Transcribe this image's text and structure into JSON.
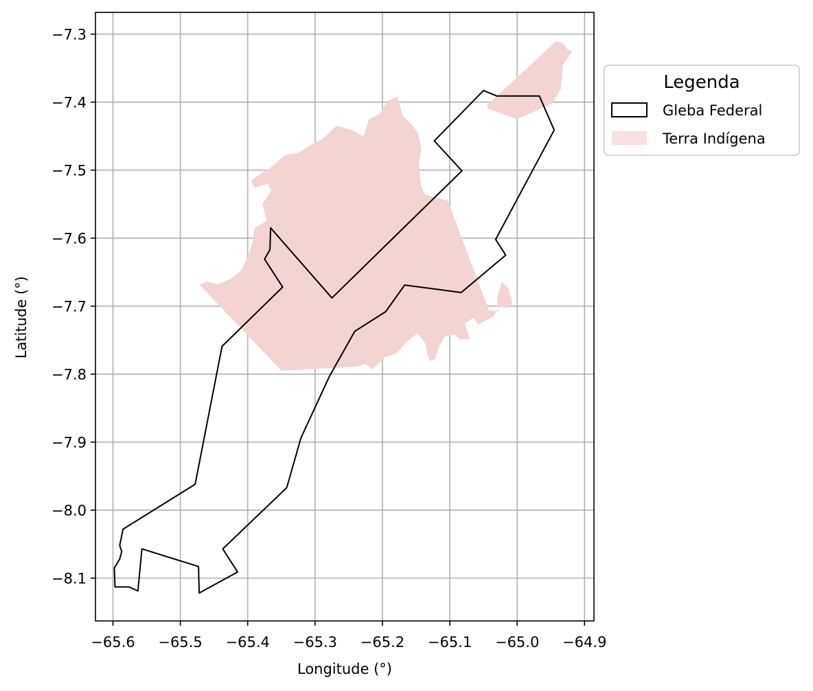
{
  "chart_data": {
    "type": "map",
    "xlabel": "Longitude (°)",
    "ylabel": "Latitude (°)",
    "xlim": [
      -65.626,
      -64.886
    ],
    "ylim": [
      -8.163,
      -7.268
    ],
    "x_ticks": [
      -65.6,
      -65.5,
      -65.4,
      -65.3,
      -65.2,
      -65.1,
      -65.0,
      -64.9
    ],
    "y_ticks": [
      -7.3,
      -7.4,
      -7.5,
      -7.6,
      -7.7,
      -7.8,
      -7.9,
      -8.0,
      -8.1
    ],
    "x_tick_labels": [
      "−65.6",
      "−65.5",
      "−65.4",
      "−65.3",
      "−65.2",
      "−65.1",
      "−65.0",
      "−64.9"
    ],
    "y_tick_labels": [
      "−7.3",
      "−7.4",
      "−7.5",
      "−7.6",
      "−7.7",
      "−7.8",
      "−7.9",
      "−8.0",
      "−8.1"
    ],
    "grid": true,
    "legend": {
      "title": "Legenda",
      "position": "outside-right-top",
      "entries": [
        {
          "label": "Gleba Federal",
          "style": "outline",
          "stroke": "#000000",
          "fill": "none"
        },
        {
          "label": "Terra Indígena",
          "style": "fill",
          "fill": "#f2d4d3"
        }
      ]
    },
    "series": [
      {
        "name": "Gleba Federal",
        "kind": "polygon",
        "stroke": "#000000",
        "fill": "none",
        "coordinates": [
          [
            -65.366,
            -7.585
          ],
          [
            -65.275,
            -7.688
          ],
          [
            -65.082,
            -7.501
          ],
          [
            -65.123,
            -7.457
          ],
          [
            -65.05,
            -7.383
          ],
          [
            -65.03,
            -7.391
          ],
          [
            -64.967,
            -7.391
          ],
          [
            -64.945,
            -7.441
          ],
          [
            -65.032,
            -7.602
          ],
          [
            -65.017,
            -7.625
          ],
          [
            -65.083,
            -7.68
          ],
          [
            -65.167,
            -7.669
          ],
          [
            -65.195,
            -7.708
          ],
          [
            -65.241,
            -7.737
          ],
          [
            -65.278,
            -7.802
          ],
          [
            -65.321,
            -7.894
          ],
          [
            -65.342,
            -7.967
          ],
          [
            -65.437,
            -8.057
          ],
          [
            -65.415,
            -8.091
          ],
          [
            -65.472,
            -8.122
          ],
          [
            -65.473,
            -8.083
          ],
          [
            -65.557,
            -8.057
          ],
          [
            -65.563,
            -8.119
          ],
          [
            -65.576,
            -8.113
          ],
          [
            -65.597,
            -8.113
          ],
          [
            -65.598,
            -8.085
          ],
          [
            -65.59,
            -8.072
          ],
          [
            -65.587,
            -8.061
          ],
          [
            -65.59,
            -8.052
          ],
          [
            -65.585,
            -8.028
          ],
          [
            -65.478,
            -7.962
          ],
          [
            -65.438,
            -7.759
          ],
          [
            -65.348,
            -7.672
          ],
          [
            -65.375,
            -7.631
          ],
          [
            -65.367,
            -7.617
          ]
        ]
      },
      {
        "name": "Terra Indígena",
        "kind": "polygon",
        "stroke": "none",
        "fill": "#f2d4d3",
        "coordinates": [
          [
            -65.472,
            -7.668
          ],
          [
            -65.35,
            -7.795
          ],
          [
            -65.238,
            -7.789
          ],
          [
            -65.225,
            -7.785
          ],
          [
            -65.216,
            -7.793
          ],
          [
            -65.205,
            -7.784
          ],
          [
            -65.196,
            -7.775
          ],
          [
            -65.18,
            -7.77
          ],
          [
            -65.163,
            -7.752
          ],
          [
            -65.148,
            -7.74
          ],
          [
            -65.137,
            -7.753
          ],
          [
            -65.133,
            -7.77
          ],
          [
            -65.13,
            -7.781
          ],
          [
            -65.122,
            -7.778
          ],
          [
            -65.116,
            -7.76
          ],
          [
            -65.108,
            -7.745
          ],
          [
            -65.093,
            -7.742
          ],
          [
            -65.085,
            -7.749
          ],
          [
            -65.07,
            -7.748
          ],
          [
            -65.078,
            -7.726
          ],
          [
            -65.065,
            -7.717
          ],
          [
            -65.058,
            -7.727
          ],
          [
            -65.035,
            -7.715
          ],
          [
            -65.027,
            -7.7
          ],
          [
            -65.014,
            -7.703
          ],
          [
            -65.007,
            -7.695
          ],
          [
            -65.013,
            -7.673
          ],
          [
            -65.023,
            -7.665
          ],
          [
            -65.03,
            -7.69
          ],
          [
            -65.028,
            -7.708
          ],
          [
            -65.042,
            -7.706
          ],
          [
            -65.103,
            -7.545
          ],
          [
            -65.137,
            -7.536
          ],
          [
            -65.143,
            -7.522
          ],
          [
            -65.146,
            -7.49
          ],
          [
            -65.142,
            -7.468
          ],
          [
            -65.147,
            -7.445
          ],
          [
            -65.157,
            -7.433
          ],
          [
            -65.17,
            -7.42
          ],
          [
            -65.178,
            -7.392
          ],
          [
            -65.192,
            -7.398
          ],
          [
            -65.205,
            -7.418
          ],
          [
            -65.22,
            -7.425
          ],
          [
            -65.228,
            -7.45
          ],
          [
            -65.248,
            -7.44
          ],
          [
            -65.268,
            -7.435
          ],
          [
            -65.29,
            -7.455
          ],
          [
            -65.305,
            -7.462
          ],
          [
            -65.325,
            -7.475
          ],
          [
            -65.345,
            -7.478
          ],
          [
            -65.358,
            -7.49
          ],
          [
            -65.372,
            -7.5
          ],
          [
            -65.395,
            -7.515
          ],
          [
            -65.39,
            -7.526
          ],
          [
            -65.37,
            -7.52
          ],
          [
            -65.365,
            -7.53
          ],
          [
            -65.378,
            -7.55
          ],
          [
            -65.372,
            -7.575
          ],
          [
            -65.39,
            -7.585
          ],
          [
            -65.393,
            -7.608
          ],
          [
            -65.4,
            -7.628
          ],
          [
            -65.41,
            -7.648
          ],
          [
            -65.425,
            -7.66
          ],
          [
            -65.445,
            -7.668
          ],
          [
            -65.46,
            -7.664
          ]
        ]
      },
      {
        "name": "Terra Indígena",
        "kind": "polygon",
        "stroke": "none",
        "fill": "#f2d4d3",
        "coordinates": [
          [
            -65.045,
            -7.405
          ],
          [
            -64.942,
            -7.31
          ],
          [
            -64.933,
            -7.313
          ],
          [
            -64.928,
            -7.318
          ],
          [
            -64.925,
            -7.323
          ],
          [
            -64.918,
            -7.325
          ],
          [
            -64.925,
            -7.335
          ],
          [
            -64.932,
            -7.345
          ],
          [
            -64.935,
            -7.38
          ],
          [
            -64.948,
            -7.402
          ],
          [
            -65.0,
            -7.425
          ],
          [
            -65.043,
            -7.41
          ]
        ]
      }
    ]
  }
}
